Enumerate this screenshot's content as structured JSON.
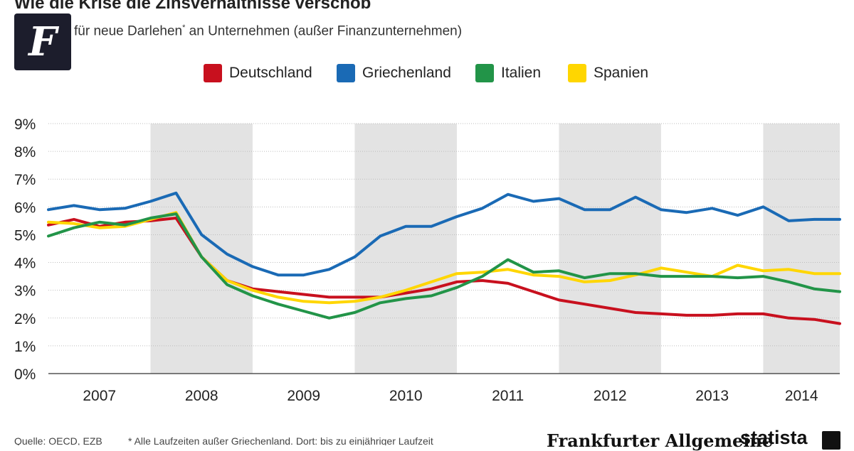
{
  "header": {
    "title": "Wie die Krise die Zinsverhältnisse verschob",
    "subtitle_main": "für neue Darlehen",
    "subtitle_mark": "*",
    "subtitle_rest": " an Unternehmen (außer Finanzunternehmen)",
    "logo_letter": "F"
  },
  "legend": [
    {
      "label": "Deutschland",
      "color": "#c8101e"
    },
    {
      "label": "Griechenland",
      "color": "#1a6ab5"
    },
    {
      "label": "Italien",
      "color": "#229448"
    },
    {
      "label": "Spanien",
      "color": "#ffd600"
    }
  ],
  "chart_data": {
    "type": "line",
    "title": "Wie die Krise die Zinsverhältnisse verschob",
    "ylabel": "",
    "xlabel": "",
    "ylim": [
      0,
      9
    ],
    "xlim": [
      2007.0,
      2014.75
    ],
    "yticks": [
      "0%",
      "1%",
      "2%",
      "3%",
      "4%",
      "5%",
      "6%",
      "7%",
      "8%",
      "9%"
    ],
    "ytick_values": [
      0,
      1,
      2,
      3,
      4,
      5,
      6,
      7,
      8,
      9
    ],
    "xtick_labels": [
      "2007",
      "2008",
      "2009",
      "2010",
      "2011",
      "2012",
      "2013",
      "2014"
    ],
    "shaded_year_bands": [
      "2008",
      "2010",
      "2012",
      "2014"
    ],
    "x": [
      2007.0,
      2007.25,
      2007.5,
      2007.75,
      2008.0,
      2008.25,
      2008.5,
      2008.75,
      2009.0,
      2009.25,
      2009.5,
      2009.75,
      2010.0,
      2010.25,
      2010.5,
      2010.75,
      2011.0,
      2011.25,
      2011.5,
      2011.75,
      2012.0,
      2012.25,
      2012.5,
      2012.75,
      2013.0,
      2013.25,
      2013.5,
      2013.75,
      2014.0,
      2014.25,
      2014.5,
      2014.75
    ],
    "series": [
      {
        "name": "Deutschland",
        "color": "#c8101e",
        "values": [
          5.35,
          5.55,
          5.3,
          5.45,
          5.5,
          5.6,
          4.2,
          3.35,
          3.05,
          2.95,
          2.85,
          2.75,
          2.75,
          2.75,
          2.9,
          3.05,
          3.3,
          3.35,
          3.25,
          2.95,
          2.65,
          2.5,
          2.35,
          2.2,
          2.15,
          2.1,
          2.1,
          2.15,
          2.15,
          2.0,
          1.95,
          1.8
        ]
      },
      {
        "name": "Griechenland",
        "color": "#1a6ab5",
        "values": [
          5.9,
          6.05,
          5.9,
          5.95,
          6.2,
          6.5,
          5.0,
          4.3,
          3.85,
          3.55,
          3.55,
          3.75,
          4.2,
          4.95,
          5.3,
          5.3,
          5.65,
          5.95,
          6.45,
          6.2,
          6.3,
          5.9,
          5.9,
          6.35,
          5.9,
          5.8,
          5.95,
          5.7,
          6.0,
          5.5,
          5.55,
          5.55
        ]
      },
      {
        "name": "Italien",
        "color": "#229448",
        "values": [
          4.95,
          5.25,
          5.45,
          5.35,
          5.6,
          5.75,
          4.2,
          3.2,
          2.8,
          2.5,
          2.25,
          2.0,
          2.2,
          2.55,
          2.7,
          2.8,
          3.1,
          3.5,
          4.1,
          3.65,
          3.7,
          3.45,
          3.6,
          3.6,
          3.5,
          3.5,
          3.5,
          3.45,
          3.5,
          3.3,
          3.05,
          2.95
        ]
      },
      {
        "name": "Spanien",
        "color": "#ffd600",
        "values": [
          5.45,
          5.4,
          5.25,
          5.3,
          5.55,
          5.8,
          4.2,
          3.35,
          3.0,
          2.75,
          2.6,
          2.55,
          2.6,
          2.75,
          3.0,
          3.3,
          3.6,
          3.65,
          3.75,
          3.55,
          3.5,
          3.3,
          3.35,
          3.55,
          3.8,
          3.65,
          3.5,
          3.9,
          3.7,
          3.75,
          3.6,
          3.6
        ]
      }
    ]
  },
  "footer": {
    "source": "Quelle: OECD, EZB",
    "note": "* Alle Laufzeiten außer Griechenland. Dort: bis zu einjähriger Laufzeit",
    "brand_faz": "Frankfurter Allgemeine",
    "brand_statista": "statista"
  }
}
